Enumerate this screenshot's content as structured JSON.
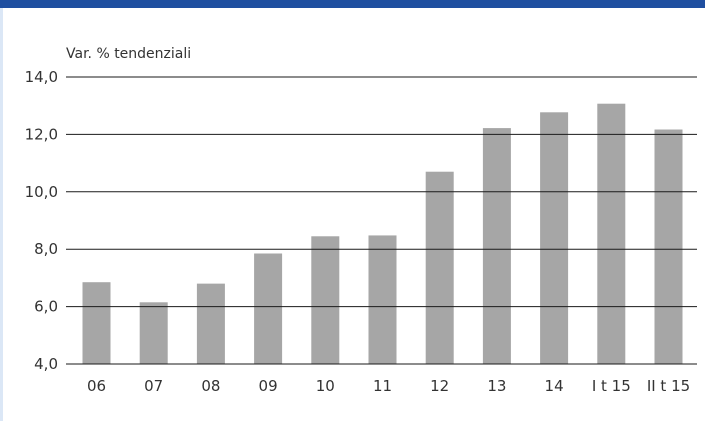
{
  "chart_data": {
    "type": "bar",
    "ylabel": "Var. % tendenziali",
    "categories": [
      "06",
      "07",
      "08",
      "09",
      "10",
      "11",
      "12",
      "13",
      "14",
      "I t 15",
      "II t 15"
    ],
    "values": [
      6.85,
      6.15,
      6.8,
      7.85,
      8.45,
      8.48,
      10.7,
      12.22,
      12.77,
      13.07,
      12.17
    ],
    "ylim": [
      4.0,
      14.0
    ],
    "yticks": [
      "4,0",
      "6,0",
      "8,0",
      "10,0",
      "12,0",
      "14,0"
    ],
    "grid": true,
    "colors": {
      "bar": "#a6a6a6",
      "header": "#1f4fa0"
    }
  }
}
